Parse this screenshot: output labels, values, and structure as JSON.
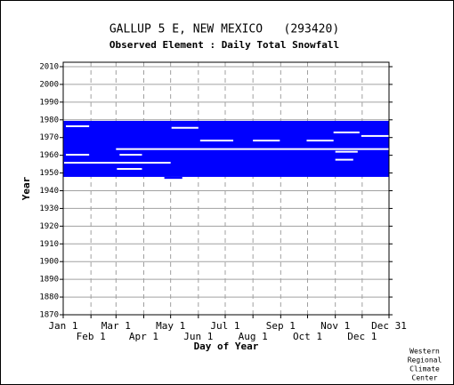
{
  "chart_data": {
    "type": "range",
    "title": "GALLUP 5 E, NEW MEXICO   (293420)",
    "subtitle": "Observed Element : Daily Total Snowfall",
    "x_label": "Day of Year",
    "y_label": "Year",
    "credit": [
      "Western",
      "Regional",
      "Climate",
      "Center"
    ],
    "xlim": [
      1,
      365
    ],
    "ylim": [
      1870,
      2012.5
    ],
    "xticks": [
      {
        "value": 1,
        "label": "Jan 1"
      },
      {
        "value": 32,
        "label": "Feb 1"
      },
      {
        "value": 60,
        "label": "Mar 1"
      },
      {
        "value": 91,
        "label": "Apr 1"
      },
      {
        "value": 121,
        "label": "May 1"
      },
      {
        "value": 152,
        "label": "Jun 1"
      },
      {
        "value": 182,
        "label": "Jul 1"
      },
      {
        "value": 213,
        "label": "Aug 1"
      },
      {
        "value": 244,
        "label": "Sep 1"
      },
      {
        "value": 274,
        "label": "Oct 1"
      },
      {
        "value": 305,
        "label": "Nov 1"
      },
      {
        "value": 335,
        "label": "Dec 1"
      },
      {
        "value": 365,
        "label": "Dec 31"
      }
    ],
    "yticks": [
      1870,
      1880,
      1890,
      1900,
      1910,
      1920,
      1930,
      1940,
      1950,
      1960,
      1970,
      1980,
      1990,
      2000,
      2010
    ],
    "color": "#0000ff",
    "gap_color": "#ffffff",
    "grid": true,
    "coverage": [
      [
        1947.8,
        1979.4,
        1,
        365
      ],
      [
        1946.7,
        1947.8,
        114,
        134
      ]
    ],
    "gaps": [
      [
        1975.9,
        1976.9,
        4,
        30
      ],
      [
        1975.0,
        1976.0,
        122,
        152
      ],
      [
        1967.8,
        1968.8,
        154,
        191
      ],
      [
        1967.8,
        1968.8,
        213,
        243
      ],
      [
        1967.8,
        1968.8,
        273,
        303
      ],
      [
        1963.0,
        1964.0,
        60,
        365
      ],
      [
        1959.8,
        1960.8,
        4,
        30
      ],
      [
        1959.8,
        1960.8,
        64,
        89
      ],
      [
        1955.3,
        1956.3,
        2,
        121
      ],
      [
        1951.8,
        1952.8,
        61,
        89
      ],
      [
        1972.4,
        1973.4,
        303,
        332
      ],
      [
        1970.4,
        1971.4,
        334,
        365
      ],
      [
        1961.5,
        1962.5,
        305,
        330
      ],
      [
        1957.0,
        1958.0,
        305,
        325
      ]
    ]
  }
}
